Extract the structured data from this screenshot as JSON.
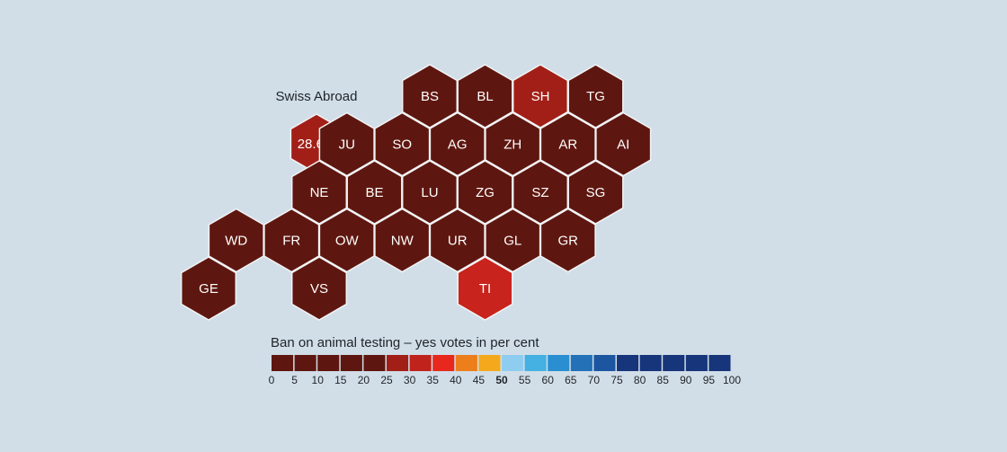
{
  "map": {
    "abroad_label": "Swiss Abroad",
    "abroad_value": "28.6%",
    "abroad_color": "#a21f17",
    "cantons": [
      {
        "code": "BS",
        "row": 0,
        "col": 2,
        "color": "#5e1710"
      },
      {
        "code": "BL",
        "row": 0,
        "col": 3,
        "color": "#5e1710"
      },
      {
        "code": "SH",
        "row": 0,
        "col": 4,
        "color": "#a21f17"
      },
      {
        "code": "TG",
        "row": 0,
        "col": 5,
        "color": "#5e1710"
      },
      {
        "code": "JU",
        "row": 1,
        "col": 1,
        "color": "#5e1710"
      },
      {
        "code": "SO",
        "row": 1,
        "col": 2,
        "color": "#5e1710"
      },
      {
        "code": "AG",
        "row": 1,
        "col": 3,
        "color": "#5e1710"
      },
      {
        "code": "ZH",
        "row": 1,
        "col": 4,
        "color": "#5e1710"
      },
      {
        "code": "AR",
        "row": 1,
        "col": 5,
        "color": "#5e1710"
      },
      {
        "code": "AI",
        "row": 1,
        "col": 6,
        "color": "#5e1710"
      },
      {
        "code": "NE",
        "row": 2,
        "col": 1,
        "color": "#5e1710"
      },
      {
        "code": "BE",
        "row": 2,
        "col": 2,
        "color": "#5e1710"
      },
      {
        "code": "LU",
        "row": 2,
        "col": 3,
        "color": "#5e1710"
      },
      {
        "code": "ZG",
        "row": 2,
        "col": 4,
        "color": "#5e1710"
      },
      {
        "code": "SZ",
        "row": 2,
        "col": 5,
        "color": "#5e1710"
      },
      {
        "code": "SG",
        "row": 2,
        "col": 6,
        "color": "#5e1710"
      },
      {
        "code": "WD",
        "row": 3,
        "col": 0,
        "color": "#5e1710"
      },
      {
        "code": "FR",
        "row": 3,
        "col": 1,
        "color": "#5e1710"
      },
      {
        "code": "OW",
        "row": 3,
        "col": 2,
        "color": "#5e1710"
      },
      {
        "code": "NW",
        "row": 3,
        "col": 3,
        "color": "#5e1710"
      },
      {
        "code": "UR",
        "row": 3,
        "col": 4,
        "color": "#5e1710"
      },
      {
        "code": "GL",
        "row": 3,
        "col": 5,
        "color": "#5e1710"
      },
      {
        "code": "GR",
        "row": 3,
        "col": 6,
        "color": "#5e1710"
      },
      {
        "code": "GE",
        "row": 4,
        "col": 0,
        "color": "#5e1710"
      },
      {
        "code": "VS",
        "row": 4,
        "col": 2,
        "color": "#5e1710"
      },
      {
        "code": "TI",
        "row": 4,
        "col": 5,
        "color": "#c8231c"
      }
    ]
  },
  "legend": {
    "title": "Ban on animal testing – yes votes in per cent",
    "colors": [
      "#5e1710",
      "#5e1710",
      "#5e1710",
      "#5e1710",
      "#5e1710",
      "#a21f17",
      "#c0231c",
      "#e8281c",
      "#ec7f1b",
      "#f4a91c",
      "#8fcdf0",
      "#45b0e2",
      "#2a8fd0",
      "#2471b8",
      "#1d56a0",
      "#16357a",
      "#16357a",
      "#16357a",
      "#16357a",
      "#16357a"
    ],
    "ticks": [
      "0",
      "5",
      "10",
      "15",
      "20",
      "25",
      "30",
      "35",
      "40",
      "45",
      "50",
      "55",
      "60",
      "65",
      "70",
      "75",
      "80",
      "85",
      "90",
      "95",
      "100"
    ],
    "bold_tick": "50"
  }
}
